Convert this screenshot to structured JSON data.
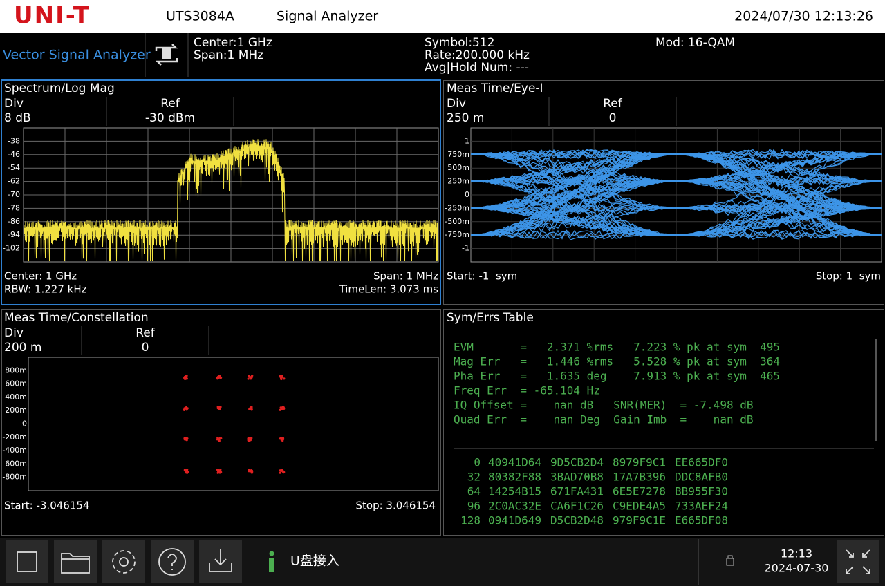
{
  "header": {
    "brand": "UNI-T",
    "model": "UTS3084A",
    "app": "Signal Analyzer",
    "datetime": "2024/07/30 12:13:26"
  },
  "info": {
    "mode": "Vector Signal Analyzer",
    "center": "Center:1 GHz",
    "span": "Span:1 MHz",
    "symbol": "Symbol:512",
    "rate": "Rate:200.000 kHz",
    "avg": "Avg|Hold Num: ---",
    "mod": "Mod: 16-QAM"
  },
  "spectrum": {
    "title": "Spectrum/Log Mag",
    "div_label": "Div",
    "div": "8 dB",
    "ref_label": "Ref",
    "ref": "-30 dBm",
    "yticks": [
      "-38",
      "-46",
      "-54",
      "-62",
      "-70",
      "-78",
      "-86",
      "-94",
      "-102"
    ],
    "center": "Center: 1 GHz",
    "rbw": "RBW: 1.227 kHz",
    "span": "Span: 1 MHz",
    "timelen": "TimeLen: 3.073 ms"
  },
  "eye": {
    "title": "Meas Time/Eye-I",
    "div_label": "Div",
    "div": "250 m",
    "ref_label": "Ref",
    "ref": "0",
    "yticks": [
      "1",
      "750m",
      "500m",
      "250m",
      "0",
      "-250m",
      "-500m",
      "-750m",
      "-1"
    ],
    "start": "Start: -1  sym",
    "stop": "Stop: 1  sym"
  },
  "constellation": {
    "title": "Meas Time/Constellation",
    "div_label": "Div",
    "div": "200 m",
    "ref_label": "Ref",
    "ref": "0",
    "yticks": [
      "800m",
      "600m",
      "400m",
      "200m",
      "0",
      "-200m",
      "-400m",
      "-600m",
      "-800m"
    ],
    "start": "Start: -3.046154",
    "stop": "Stop: 3.046154"
  },
  "table": {
    "title": "Sym/Errs Table",
    "metrics": [
      "EVM       =   2.371 %rms   7.223 % pk at sym  495",
      "Mag Err   =   1.446 %rms   5.528 % pk at sym  364",
      "Pha Err   =   1.635 deg    7.913 % pk at sym  465",
      "Freq Err  = -65.104 Hz",
      "IQ Offset =    nan dB   SNR(MER)  = -7.498 dB",
      "Quad Err  =    nan Deg  Gain Imb  =    nan dB"
    ],
    "symbols": [
      {
        "index": "0",
        "words": [
          "40941D64",
          "9D5CB2D4",
          "8979F9C1",
          "EE665DF0"
        ]
      },
      {
        "index": "32",
        "words": [
          "80382F88",
          "3BAD70B8",
          "17A7B396",
          "DDC8AFB0"
        ]
      },
      {
        "index": "64",
        "words": [
          "14254B15",
          "671FA431",
          "6E5E7278",
          "BB955F30"
        ]
      },
      {
        "index": "96",
        "words": [
          "2C0AC32E",
          "CA6F1C26",
          "C9EDE4A5",
          "733AEF24"
        ]
      },
      {
        "index": "128",
        "words": [
          "0941D649",
          "D5CB2D48",
          "979F9C1E",
          "E665DF08"
        ]
      }
    ]
  },
  "footer": {
    "message": "U盘接入",
    "time": "12:13",
    "date": "2024-07-30"
  }
}
